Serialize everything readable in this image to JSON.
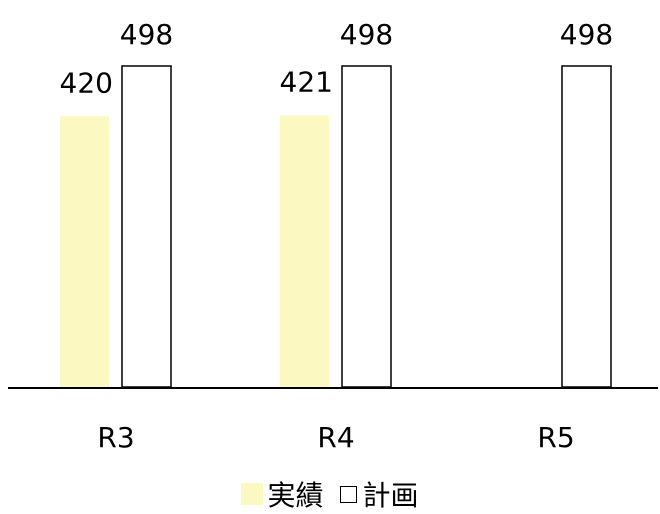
{
  "chart_data": {
    "type": "bar",
    "categories": [
      "R3",
      "R4",
      "R5"
    ],
    "series": [
      {
        "name": "実績",
        "values": [
          420,
          421,
          null
        ],
        "color": "#FBF8C2"
      },
      {
        "name": "計画",
        "values": [
          498,
          498,
          498
        ],
        "color": "#ffffff",
        "stroke": "#000000"
      }
    ],
    "ylim": [
      0,
      498
    ],
    "grid": false,
    "legend": "bottom-center"
  },
  "legend": {
    "actual_label": "実績",
    "plan_label": "計画"
  }
}
